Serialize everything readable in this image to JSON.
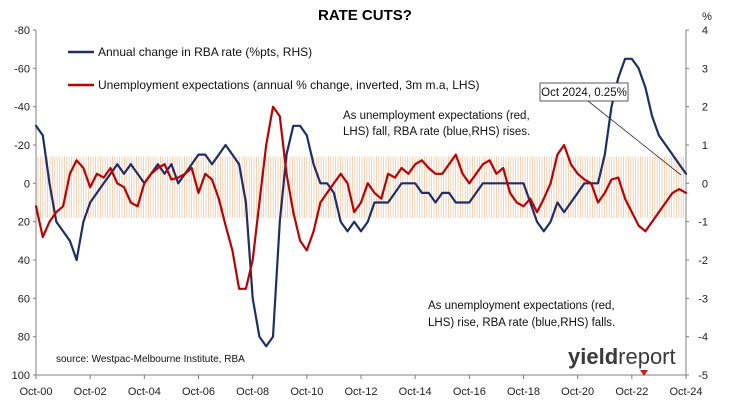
{
  "chart_data": {
    "type": "line",
    "title": "RATE CUTS?",
    "right_axis_unit": "%",
    "x_tick_labels": [
      "Oct-00",
      "Oct-02",
      "Oct-04",
      "Oct-06",
      "Oct-08",
      "Oct-10",
      "Oct-12",
      "Oct-14",
      "Oct-16",
      "Oct-18",
      "Oct-20",
      "Oct-22",
      "Oct-24"
    ],
    "x_range": [
      2000.75,
      2024.75
    ],
    "left_axis": {
      "inverted": true,
      "ylim": [
        -80,
        100
      ],
      "ticks": [
        -80,
        -60,
        -40,
        -20,
        0,
        20,
        40,
        60,
        80,
        100
      ],
      "tick_labels": [
        "-80",
        "-60",
        "-40",
        "-20",
        "0",
        "20",
        "40",
        "60",
        "80",
        "100"
      ]
    },
    "right_axis": {
      "ylim": [
        -5,
        4
      ],
      "ticks": [
        4,
        3,
        2,
        1,
        0,
        -1,
        -2,
        -3,
        -4,
        -5
      ],
      "tick_labels": [
        "4",
        "3",
        "2",
        "1",
        "0",
        "-1",
        "-2",
        "-3",
        "-4",
        "-5"
      ]
    },
    "band": {
      "left_axis_range": [
        -14,
        18
      ]
    },
    "series": [
      {
        "name": "Annual change in RBA rate (%pts, RHS)",
        "axis": "right",
        "color": "#1f2d6b",
        "x": [
          2000.75,
          2001.0,
          2001.25,
          2001.5,
          2001.75,
          2002.0,
          2002.25,
          2002.5,
          2002.75,
          2003.0,
          2003.25,
          2003.5,
          2003.75,
          2004.0,
          2004.25,
          2004.5,
          2004.75,
          2005.0,
          2005.25,
          2005.5,
          2005.75,
          2006.0,
          2006.25,
          2006.5,
          2006.75,
          2007.0,
          2007.25,
          2007.5,
          2007.75,
          2008.0,
          2008.25,
          2008.5,
          2008.75,
          2009.0,
          2009.25,
          2009.5,
          2009.75,
          2010.0,
          2010.25,
          2010.5,
          2010.75,
          2011.0,
          2011.25,
          2011.5,
          2011.75,
          2012.0,
          2012.25,
          2012.5,
          2012.75,
          2013.0,
          2013.25,
          2013.5,
          2013.75,
          2014.0,
          2014.25,
          2014.5,
          2014.75,
          2015.0,
          2015.25,
          2015.5,
          2015.75,
          2016.0,
          2016.25,
          2016.5,
          2016.75,
          2017.0,
          2017.25,
          2017.5,
          2017.75,
          2018.0,
          2018.25,
          2018.5,
          2018.75,
          2019.0,
          2019.25,
          2019.5,
          2019.75,
          2020.0,
          2020.25,
          2020.5,
          2020.75,
          2021.0,
          2021.25,
          2021.5,
          2021.75,
          2022.0,
          2022.25,
          2022.5,
          2022.75,
          2023.0,
          2023.25,
          2023.5,
          2023.75,
          2024.0,
          2024.25,
          2024.5,
          2024.75
        ],
        "y": [
          1.5,
          1.25,
          0.0,
          -1.0,
          -1.25,
          -1.5,
          -2.0,
          -1.0,
          -0.5,
          -0.25,
          0.0,
          0.25,
          0.5,
          0.25,
          0.5,
          0.25,
          0.0,
          0.25,
          0.5,
          0.25,
          0.5,
          0.0,
          0.25,
          0.5,
          0.75,
          0.75,
          0.5,
          0.75,
          1.0,
          0.75,
          0.5,
          -0.5,
          -3.0,
          -4.0,
          -4.25,
          -4.0,
          -1.0,
          0.75,
          1.5,
          1.5,
          1.25,
          0.5,
          0.0,
          0.0,
          -0.25,
          -1.0,
          -1.25,
          -1.0,
          -1.25,
          -1.0,
          -0.5,
          -0.5,
          -0.5,
          -0.25,
          0.0,
          0.0,
          0.0,
          -0.25,
          -0.25,
          -0.5,
          -0.25,
          -0.25,
          -0.5,
          -0.5,
          -0.5,
          -0.25,
          0.0,
          0.0,
          0.0,
          0.0,
          0.0,
          0.0,
          0.0,
          -0.5,
          -1.0,
          -1.25,
          -1.0,
          -0.5,
          -0.75,
          -0.5,
          -0.25,
          0.0,
          0.0,
          0.0,
          0.75,
          2.0,
          2.75,
          3.25,
          3.25,
          3.0,
          2.5,
          1.75,
          1.25,
          1.0,
          0.75,
          0.5,
          0.25
        ]
      },
      {
        "name": "Unemployment expectations (annual % change, inverted, 3m m.a, LHS)",
        "axis": "left",
        "color": "#c00000",
        "x": [
          2000.75,
          2001.0,
          2001.25,
          2001.5,
          2001.75,
          2002.0,
          2002.25,
          2002.5,
          2002.75,
          2003.0,
          2003.25,
          2003.5,
          2003.75,
          2004.0,
          2004.25,
          2004.5,
          2004.75,
          2005.0,
          2005.25,
          2005.5,
          2005.75,
          2006.0,
          2006.25,
          2006.5,
          2006.75,
          2007.0,
          2007.25,
          2007.5,
          2007.75,
          2008.0,
          2008.25,
          2008.5,
          2008.75,
          2009.0,
          2009.25,
          2009.5,
          2009.75,
          2010.0,
          2010.25,
          2010.5,
          2010.75,
          2011.0,
          2011.25,
          2011.5,
          2011.75,
          2012.0,
          2012.25,
          2012.5,
          2012.75,
          2013.0,
          2013.25,
          2013.5,
          2013.75,
          2014.0,
          2014.25,
          2014.5,
          2014.75,
          2015.0,
          2015.25,
          2015.5,
          2015.75,
          2016.0,
          2016.25,
          2016.5,
          2016.75,
          2017.0,
          2017.25,
          2017.5,
          2017.75,
          2018.0,
          2018.25,
          2018.5,
          2018.75,
          2019.0,
          2019.25,
          2019.5,
          2019.75,
          2020.0,
          2020.25,
          2020.5,
          2020.75,
          2021.0,
          2021.25,
          2021.5,
          2021.75,
          2022.0,
          2022.25,
          2022.5,
          2022.75,
          2023.0,
          2023.25,
          2023.5,
          2023.75,
          2024.0,
          2024.25,
          2024.5,
          2024.75
        ],
        "y": [
          12,
          28,
          20,
          15,
          12,
          -5,
          -12,
          -8,
          2,
          -5,
          -3,
          -8,
          0,
          2,
          10,
          12,
          0,
          -5,
          -8,
          -10,
          -2,
          -3,
          -5,
          -8,
          5,
          -5,
          -2,
          8,
          22,
          35,
          55,
          55,
          40,
          10,
          -20,
          -40,
          -35,
          -5,
          15,
          30,
          35,
          25,
          10,
          5,
          0,
          -5,
          0,
          15,
          10,
          0,
          5,
          8,
          -5,
          -3,
          -8,
          -5,
          -10,
          -12,
          -8,
          -5,
          -5,
          -10,
          -15,
          -5,
          0,
          -5,
          -10,
          -12,
          -5,
          -8,
          5,
          10,
          12,
          8,
          15,
          8,
          0,
          -15,
          -20,
          -10,
          -5,
          -2,
          0,
          10,
          5,
          -2,
          -3,
          8,
          15,
          22,
          25,
          20,
          15,
          10,
          5,
          3,
          5
        ]
      }
    ],
    "legend": {
      "placement": "top-left"
    },
    "annotations": {
      "callout": "Oct 2024, 0.25%",
      "upper_note_line1": "As unemployment expectations (red,",
      "upper_note_line2": "LHS) fall, RBA rate (blue,RHS) rises.",
      "lower_note_line1": "As unemployment expectations (red,",
      "lower_note_line2": "LHS) rise, RBA rate (blue,RHS) falls.",
      "source": "source: Westpac-Melbourne Institute, RBA"
    },
    "grid": false
  },
  "logo": {
    "bold": "yield",
    "regular": "report"
  }
}
